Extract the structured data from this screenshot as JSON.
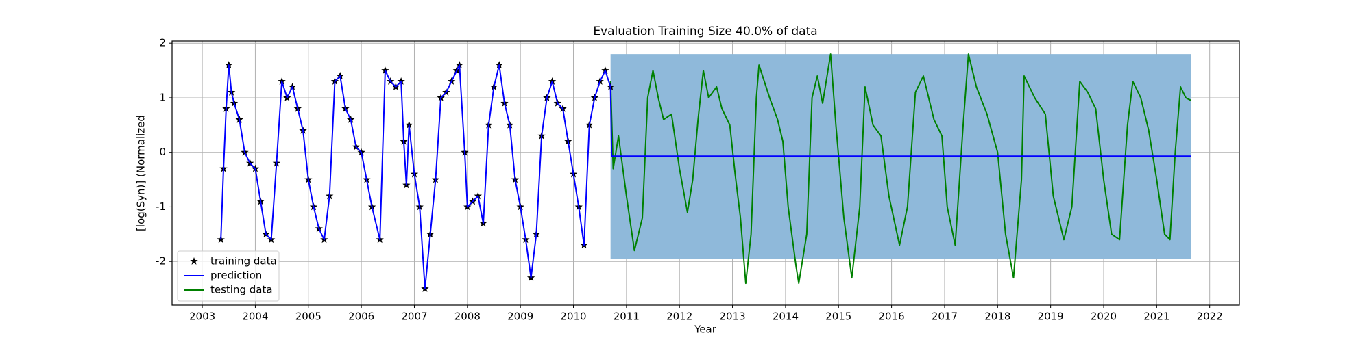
{
  "chart_data": {
    "type": "line",
    "title": "Evaluation Training Size 40.0% of data",
    "x_label": "Year",
    "y_label": "[log(Syn)] (Normalized",
    "xlim": [
      2002.43,
      2022.56
    ],
    "ylim": [
      -2.8,
      2.04
    ],
    "xticks": [
      2003,
      2004,
      2005,
      2006,
      2007,
      2008,
      2009,
      2010,
      2011,
      2012,
      2013,
      2014,
      2015,
      2016,
      2017,
      2018,
      2019,
      2020,
      2021,
      2022
    ],
    "yticks": [
      -2,
      -1,
      0,
      1,
      2
    ],
    "grid": true,
    "legend": "lower left",
    "interval": {
      "x": [
        2010.7,
        2021.65
      ],
      "lower": [
        -1.95,
        -1.95
      ],
      "upper": [
        1.8,
        1.8
      ],
      "color": "#8fb9da"
    },
    "series": [
      {
        "name": "training data",
        "color": "#000000",
        "marker": "star",
        "line": false,
        "x": [
          2003.35,
          2003.4,
          2003.45,
          2003.5,
          2003.55,
          2003.6,
          2003.7,
          2003.8,
          2003.9,
          2004.0,
          2004.1,
          2004.2,
          2004.3,
          2004.4,
          2004.5,
          2004.6,
          2004.7,
          2004.8,
          2004.9,
          2005.0,
          2005.1,
          2005.2,
          2005.3,
          2005.4,
          2005.5,
          2005.6,
          2005.7,
          2005.8,
          2005.9,
          2006.0,
          2006.1,
          2006.2,
          2006.35,
          2006.45,
          2006.55,
          2006.65,
          2006.75,
          2006.8,
          2006.85,
          2006.9,
          2007.0,
          2007.1,
          2007.2,
          2007.3,
          2007.4,
          2007.5,
          2007.6,
          2007.7,
          2007.8,
          2007.85,
          2007.95,
          2008.0,
          2008.1,
          2008.2,
          2008.3,
          2008.4,
          2008.5,
          2008.6,
          2008.7,
          2008.8,
          2008.9,
          2009.0,
          2009.1,
          2009.2,
          2009.3,
          2009.4,
          2009.5,
          2009.6,
          2009.7,
          2009.8,
          2009.9,
          2010.0,
          2010.1,
          2010.2,
          2010.3,
          2010.4,
          2010.5,
          2010.6,
          2010.7
        ],
        "values": [
          -1.6,
          -0.3,
          0.8,
          1.6,
          1.1,
          0.9,
          0.6,
          0.0,
          -0.2,
          -0.3,
          -0.9,
          -1.5,
          -1.6,
          -0.2,
          1.3,
          1.0,
          1.2,
          0.8,
          0.4,
          -0.5,
          -1.0,
          -1.4,
          -1.6,
          -0.8,
          1.3,
          1.4,
          0.8,
          0.6,
          0.1,
          0.0,
          -0.5,
          -1.0,
          -1.6,
          1.5,
          1.3,
          1.2,
          1.3,
          0.2,
          -0.6,
          0.5,
          -0.4,
          -1.0,
          -2.5,
          -1.5,
          -0.5,
          1.0,
          1.1,
          1.3,
          1.5,
          1.6,
          0.0,
          -1.0,
          -0.9,
          -0.8,
          -1.3,
          0.5,
          1.2,
          1.6,
          0.9,
          0.5,
          -0.5,
          -1.0,
          -1.6,
          -2.3,
          -1.5,
          0.3,
          1.0,
          1.3,
          0.9,
          0.8,
          0.2,
          -0.4,
          -1.0,
          -1.7,
          0.5,
          1.0,
          1.3,
          1.5,
          1.2
        ]
      },
      {
        "name": "prediction",
        "color": "#0000ff",
        "marker": "none",
        "line": true,
        "x": [
          2003.35,
          2003.4,
          2003.45,
          2003.5,
          2003.55,
          2003.6,
          2003.7,
          2003.8,
          2003.9,
          2004.0,
          2004.1,
          2004.2,
          2004.3,
          2004.4,
          2004.5,
          2004.6,
          2004.7,
          2004.8,
          2004.9,
          2005.0,
          2005.1,
          2005.2,
          2005.3,
          2005.4,
          2005.5,
          2005.6,
          2005.7,
          2005.8,
          2005.9,
          2006.0,
          2006.1,
          2006.2,
          2006.35,
          2006.45,
          2006.55,
          2006.65,
          2006.75,
          2006.8,
          2006.85,
          2006.9,
          2007.0,
          2007.1,
          2007.2,
          2007.3,
          2007.4,
          2007.5,
          2007.6,
          2007.7,
          2007.8,
          2007.85,
          2007.95,
          2008.0,
          2008.1,
          2008.2,
          2008.3,
          2008.4,
          2008.5,
          2008.6,
          2008.7,
          2008.8,
          2008.9,
          2009.0,
          2009.1,
          2009.2,
          2009.3,
          2009.4,
          2009.5,
          2009.6,
          2009.7,
          2009.8,
          2009.9,
          2010.0,
          2010.1,
          2010.2,
          2010.3,
          2010.4,
          2010.5,
          2010.6,
          2010.7,
          2010.72,
          2021.65
        ],
        "values": [
          -1.6,
          -0.3,
          0.8,
          1.6,
          1.1,
          0.9,
          0.6,
          0.0,
          -0.2,
          -0.3,
          -0.9,
          -1.5,
          -1.6,
          -0.2,
          1.3,
          1.0,
          1.2,
          0.8,
          0.4,
          -0.5,
          -1.0,
          -1.4,
          -1.6,
          -0.8,
          1.3,
          1.4,
          0.8,
          0.6,
          0.1,
          0.0,
          -0.5,
          -1.0,
          -1.6,
          1.5,
          1.3,
          1.2,
          1.3,
          0.2,
          -0.6,
          0.5,
          -0.4,
          -1.0,
          -2.5,
          -1.5,
          -0.5,
          1.0,
          1.1,
          1.3,
          1.5,
          1.6,
          0.0,
          -1.0,
          -0.9,
          -0.8,
          -1.3,
          0.5,
          1.2,
          1.6,
          0.9,
          0.5,
          -0.5,
          -1.0,
          -1.6,
          -2.3,
          -1.5,
          0.3,
          1.0,
          1.3,
          0.9,
          0.8,
          0.2,
          -0.4,
          -1.0,
          -1.7,
          0.5,
          1.0,
          1.3,
          1.5,
          1.2,
          -0.07,
          -0.07
        ]
      },
      {
        "name": "testing data",
        "color": "#008000",
        "marker": "none",
        "line": true,
        "x": [
          2010.7,
          2010.75,
          2010.85,
          2011.0,
          2011.15,
          2011.3,
          2011.4,
          2011.5,
          2011.6,
          2011.7,
          2011.85,
          2012.0,
          2012.15,
          2012.25,
          2012.35,
          2012.45,
          2012.55,
          2012.7,
          2012.8,
          2012.95,
          2013.05,
          2013.15,
          2013.25,
          2013.35,
          2013.45,
          2013.5,
          2013.6,
          2013.7,
          2013.85,
          2013.95,
          2014.05,
          2014.2,
          2014.25,
          2014.4,
          2014.5,
          2014.6,
          2014.7,
          2014.85,
          2014.95,
          2015.1,
          2015.25,
          2015.4,
          2015.5,
          2015.65,
          2015.8,
          2015.95,
          2016.15,
          2016.3,
          2016.45,
          2016.6,
          2016.8,
          2016.95,
          2017.05,
          2017.2,
          2017.35,
          2017.45,
          2017.6,
          2017.8,
          2018.0,
          2018.15,
          2018.3,
          2018.45,
          2018.5,
          2018.7,
          2018.9,
          2019.05,
          2019.25,
          2019.4,
          2019.55,
          2019.7,
          2019.85,
          2020.0,
          2020.15,
          2020.3,
          2020.45,
          2020.55,
          2020.7,
          2020.85,
          2021.0,
          2021.15,
          2021.25,
          2021.35,
          2021.45,
          2021.55,
          2021.65
        ],
        "values": [
          1.3,
          -0.3,
          0.3,
          -0.8,
          -1.8,
          -1.2,
          1.0,
          1.5,
          1.0,
          0.6,
          0.7,
          -0.3,
          -1.1,
          -0.5,
          0.6,
          1.5,
          1.0,
          1.2,
          0.8,
          0.5,
          -0.4,
          -1.2,
          -2.4,
          -1.5,
          1.0,
          1.6,
          1.3,
          1.0,
          0.6,
          0.2,
          -1.0,
          -2.1,
          -2.4,
          -1.5,
          1.0,
          1.4,
          0.9,
          1.8,
          0.5,
          -1.2,
          -2.3,
          -1.0,
          1.2,
          0.5,
          0.3,
          -0.8,
          -1.7,
          -1.0,
          1.1,
          1.4,
          0.6,
          0.3,
          -1.0,
          -1.7,
          0.5,
          1.8,
          1.2,
          0.7,
          0.0,
          -1.5,
          -2.3,
          -0.5,
          1.4,
          1.0,
          0.7,
          -0.8,
          -1.6,
          -1.0,
          1.3,
          1.1,
          0.8,
          -0.5,
          -1.5,
          -1.6,
          0.5,
          1.3,
          1.0,
          0.4,
          -0.5,
          -1.5,
          -1.6,
          0.0,
          1.2,
          1.0,
          0.95
        ]
      }
    ]
  }
}
